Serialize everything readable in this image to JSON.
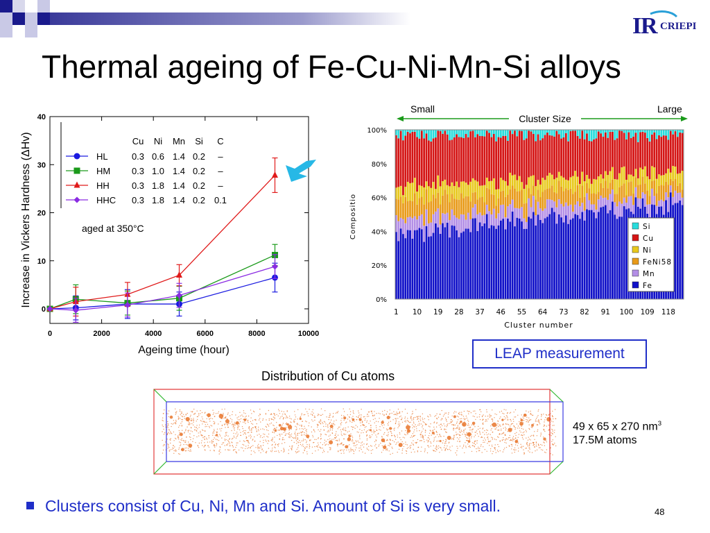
{
  "slide": {
    "title": "Thermal ageing of Fe-Cu-Ni-Mn-Si alloys",
    "logo_text": "CRIEPI",
    "leap_label": "LEAP measurement",
    "cu_distribution_title": "Distribution of Cu atoms",
    "dims_line1": "49 x 65 x 270 nm",
    "dims_line1_sup": "3",
    "dims_line2": "17.5M atoms",
    "bullet": "Clusters consist of Cu, Ni, Mn and Si. Amount of Si is very small.",
    "page_number": "48",
    "colors": {
      "accent": "#1f2ec8",
      "arrow": "#27b8e6",
      "atoms": "#e8742a"
    }
  },
  "chart_data": [
    {
      "type": "line",
      "ylabel": "Increase in Vickers Hardness (ΔHv)",
      "xlabel": "Ageing time (hour)",
      "xlim": [
        0,
        10000
      ],
      "ylim": [
        0,
        40
      ],
      "x_ticks": [
        "0",
        "2000",
        "4000",
        "6000",
        "8000",
        "10000"
      ],
      "y_ticks": [
        "0",
        "10",
        "20",
        "30",
        "40"
      ],
      "annotation": "aged at 350°C",
      "table_header": [
        "Cu",
        "Ni",
        "Mn",
        "Si",
        "C"
      ],
      "legend_placement": "top-left",
      "series": [
        {
          "name": "HL",
          "color": "#1a1ae0",
          "marker": "circle",
          "composition": [
            "0.3",
            "0.6",
            "1.4",
            "0.2",
            "–"
          ],
          "points": [
            {
              "x": 0,
              "y": 0,
              "err": 0
            },
            {
              "x": 1000,
              "y": 0.2,
              "err": 2.5
            },
            {
              "x": 3000,
              "y": 1.0,
              "err": 3.0
            },
            {
              "x": 5000,
              "y": 1.0,
              "err": 2.5
            },
            {
              "x": 8700,
              "y": 6.5,
              "err": 3.0
            }
          ]
        },
        {
          "name": "HM",
          "color": "#1a9a1a",
          "marker": "square",
          "composition": [
            "0.3",
            "1.0",
            "1.4",
            "0.2",
            "–"
          ],
          "points": [
            {
              "x": 0,
              "y": 0,
              "err": 0
            },
            {
              "x": 1000,
              "y": 2.0,
              "err": 3.0
            },
            {
              "x": 3000,
              "y": 1.2,
              "err": 2.5
            },
            {
              "x": 5000,
              "y": 2.2,
              "err": 2.5
            },
            {
              "x": 8700,
              "y": 11.2,
              "err": 2.2
            }
          ]
        },
        {
          "name": "HH",
          "color": "#e01a1a",
          "marker": "triangle",
          "composition": [
            "0.3",
            "1.8",
            "1.4",
            "0.2",
            "–"
          ],
          "points": [
            {
              "x": 0,
              "y": 0,
              "err": 0
            },
            {
              "x": 1000,
              "y": 1.5,
              "err": 3.0
            },
            {
              "x": 3000,
              "y": 3.0,
              "err": 2.5
            },
            {
              "x": 5000,
              "y": 7.0,
              "err": 2.2
            },
            {
              "x": 8700,
              "y": 27.8,
              "err": 3.6
            }
          ]
        },
        {
          "name": "HHC",
          "color": "#8a2be2",
          "marker": "diamond",
          "composition": [
            "0.3",
            "1.8",
            "1.4",
            "0.2",
            "0.1"
          ],
          "points": [
            {
              "x": 0,
              "y": 0,
              "err": 0
            },
            {
              "x": 1000,
              "y": -0.3,
              "err": 2.5
            },
            {
              "x": 3000,
              "y": 0.8,
              "err": 2.5
            },
            {
              "x": 5000,
              "y": 2.8,
              "err": 2.5
            },
            {
              "x": 8700,
              "y": 8.8,
              "err": 2.5
            }
          ]
        }
      ]
    },
    {
      "type": "bar",
      "stacked": true,
      "ylabel": "Compositio",
      "xlabel": "Cluster number",
      "ylim": [
        0,
        100
      ],
      "y_ticks": [
        "0%",
        "20%",
        "40%",
        "60%",
        "80%",
        "100%"
      ],
      "x_ticks": [
        "1",
        "10",
        "19",
        "28",
        "37",
        "46",
        "55",
        "64",
        "73",
        "82",
        "91",
        "100",
        "109",
        "118"
      ],
      "cluster_count": 124,
      "size_axis": {
        "left": "Small",
        "right": "Large",
        "label": "Cluster Size"
      },
      "legend_placement": "right",
      "series": [
        {
          "name": "Fe",
          "color": "#1010c8",
          "trend": [
            38,
            56
          ]
        },
        {
          "name": "Mn",
          "color": "#b38ee6",
          "trend": [
            9,
            6
          ]
        },
        {
          "name": "FeNi58",
          "color": "#e89a18",
          "trend": [
            12,
            6
          ]
        },
        {
          "name": "Ni",
          "color": "#e8c81c",
          "trend": [
            8,
            7
          ]
        },
        {
          "name": "Cu",
          "color": "#d41414",
          "trend": [
            30,
            21
          ]
        },
        {
          "name": "Si",
          "color": "#28dcdc",
          "trend": [
            3,
            4
          ]
        }
      ]
    }
  ]
}
